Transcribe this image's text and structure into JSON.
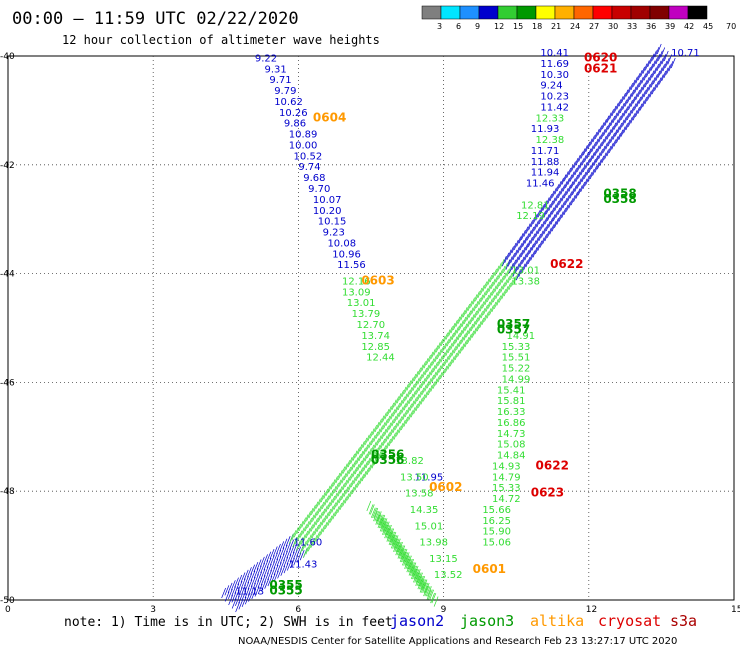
{
  "header": {
    "title": "00:00 – 11:59 UTC 02/22/2020",
    "subtitle": "12 hour collection of altimeter wave heights"
  },
  "colorbar": {
    "colors": [
      "#7f7f7f",
      "#00e5ff",
      "#1e90ff",
      "#0000cd",
      "#32cd32",
      "#009900",
      "#ffff00",
      "#ffb000",
      "#ff6600",
      "#ff0000",
      "#c80000",
      "#a00000",
      "#800000",
      "#c000c0",
      "#000000"
    ],
    "labels": [
      "3",
      "6",
      "9",
      "12",
      "15",
      "18",
      "21",
      "24",
      "27",
      "30",
      "33",
      "36",
      "39",
      "42",
      "45",
      "70",
      "(ft)"
    ]
  },
  "note": "note: 1) Time is in UTC; 2) SWH is in feet",
  "legend": [
    {
      "name": "jason2",
      "color": "#0000cc"
    },
    {
      "name": "jason3",
      "color": "#009900"
    },
    {
      "name": "altika",
      "color": "#ff9900"
    },
    {
      "name": "cryosat",
      "color": "#dd0000"
    },
    {
      "name": "s3a",
      "color": "#aa0000"
    }
  ],
  "footer": "NOAA/NESDIS Center for Satellite Applications and Research    Feb 23 13:27:17 UTC 2020",
  "chart_data": {
    "type": "scatter",
    "xlim": [
      0,
      15
    ],
    "ylim": [
      -50,
      -40
    ],
    "x_ticks": [
      "0",
      "3",
      "6",
      "9",
      "12",
      "15"
    ],
    "y_ticks": [
      "-40",
      "-42",
      "-44",
      "-46",
      "-48",
      "-50"
    ],
    "grid": true,
    "series": [
      {
        "name": "jason2",
        "color": "#0000cc",
        "points": [
          [
            5.1,
            -40.1,
            "9.22"
          ],
          [
            5.3,
            -40.3,
            "9.31"
          ],
          [
            5.4,
            -40.5,
            "9.71"
          ],
          [
            5.5,
            -40.7,
            "9.79"
          ],
          [
            5.5,
            -40.9,
            "10.62"
          ],
          [
            5.6,
            -41.1,
            "10.26"
          ],
          [
            5.7,
            -41.3,
            "9.86"
          ],
          [
            5.8,
            -41.5,
            "10.89"
          ],
          [
            5.8,
            -41.7,
            "10.00"
          ],
          [
            5.9,
            -41.9,
            "10.52"
          ],
          [
            6.0,
            -42.1,
            "9.74"
          ],
          [
            6.1,
            -42.3,
            "9.68"
          ],
          [
            6.2,
            -42.5,
            "9.70"
          ],
          [
            6.3,
            -42.7,
            "10.07"
          ],
          [
            6.3,
            -42.9,
            "10.20"
          ],
          [
            6.4,
            -43.1,
            "10.15"
          ],
          [
            6.5,
            -43.3,
            "9.23"
          ],
          [
            6.6,
            -43.5,
            "10.08"
          ],
          [
            6.7,
            -43.7,
            "10.96"
          ],
          [
            6.8,
            -43.9,
            "11.56"
          ],
          [
            11.0,
            -40.0,
            "10.41"
          ],
          [
            11.0,
            -40.2,
            "11.69"
          ],
          [
            11.0,
            -40.4,
            "10.30"
          ],
          [
            11.0,
            -40.6,
            "9.24"
          ],
          [
            11.0,
            -40.8,
            "10.23"
          ],
          [
            11.0,
            -41.0,
            "11.42"
          ],
          [
            10.8,
            -41.4,
            "11.93"
          ],
          [
            10.8,
            -41.8,
            "11.71"
          ],
          [
            10.8,
            -42.0,
            "11.88"
          ],
          [
            10.8,
            -42.2,
            "11.94"
          ],
          [
            10.7,
            -42.4,
            "11.46"
          ],
          [
            8.4,
            -47.8,
            "11.95"
          ],
          [
            5.9,
            -49.0,
            "11.60"
          ],
          [
            5.8,
            -49.4,
            "11.43"
          ],
          [
            13.7,
            -40.0,
            "10.71"
          ],
          [
            4.7,
            -49.9,
            "11.13"
          ]
        ]
      },
      {
        "name": "jason3",
        "color": "#33dd33",
        "points": [
          [
            6.9,
            -44.2,
            "12.16"
          ],
          [
            6.9,
            -44.4,
            "13.09"
          ],
          [
            7.0,
            -44.6,
            "13.01"
          ],
          [
            7.1,
            -44.8,
            "13.79"
          ],
          [
            7.2,
            -45.0,
            "12.70"
          ],
          [
            7.3,
            -45.2,
            "13.74"
          ],
          [
            7.3,
            -45.4,
            "12.85"
          ],
          [
            7.4,
            -45.6,
            "12.44"
          ],
          [
            10.9,
            -41.2,
            "12.33"
          ],
          [
            10.9,
            -41.6,
            "12.38"
          ],
          [
            10.6,
            -42.8,
            "12.81"
          ],
          [
            10.5,
            -43.0,
            "12.19"
          ],
          [
            10.4,
            -44.0,
            "13.01"
          ],
          [
            10.4,
            -44.2,
            "13.38"
          ],
          [
            10.3,
            -45.2,
            "14.91"
          ],
          [
            10.2,
            -45.4,
            "15.33"
          ],
          [
            10.2,
            -45.6,
            "15.51"
          ],
          [
            10.2,
            -45.8,
            "15.22"
          ],
          [
            10.2,
            -46.0,
            "14.99"
          ],
          [
            10.1,
            -46.2,
            "15.41"
          ],
          [
            10.1,
            -46.4,
            "15.81"
          ],
          [
            10.1,
            -46.6,
            "16.33"
          ],
          [
            10.1,
            -46.8,
            "16.86"
          ],
          [
            10.1,
            -47.0,
            "14.73"
          ],
          [
            10.1,
            -47.2,
            "15.08"
          ],
          [
            10.1,
            -47.4,
            "14.84"
          ],
          [
            10.0,
            -47.6,
            "14.93"
          ],
          [
            10.0,
            -47.8,
            "14.79"
          ],
          [
            10.0,
            -48.0,
            "15.33"
          ],
          [
            10.0,
            -48.2,
            "14.72"
          ],
          [
            9.8,
            -48.4,
            "15.66"
          ],
          [
            9.8,
            -48.6,
            "16.25"
          ],
          [
            9.8,
            -48.8,
            "15.90"
          ],
          [
            9.8,
            -49.0,
            "15.06"
          ],
          [
            8.0,
            -47.5,
            "13.82"
          ],
          [
            8.1,
            -47.8,
            "13.50"
          ],
          [
            8.2,
            -48.1,
            "13.58"
          ],
          [
            8.3,
            -48.4,
            "14.35"
          ],
          [
            8.4,
            -48.7,
            "15.01"
          ],
          [
            8.5,
            -49.0,
            "13.98"
          ],
          [
            8.7,
            -49.3,
            "13.15"
          ],
          [
            8.8,
            -49.6,
            "13.52"
          ]
        ]
      },
      {
        "name": "altika",
        "color": "#ff9900",
        "points": [
          [
            6.3,
            -41.2,
            "0604"
          ],
          [
            7.3,
            -44.2,
            "0603"
          ],
          [
            8.7,
            -48.0,
            "0602"
          ],
          [
            9.6,
            -49.5,
            "0601"
          ]
        ]
      },
      {
        "name": "cryosat",
        "color": "#dd0000",
        "points": [
          [
            11.9,
            -40.1,
            "0620"
          ],
          [
            11.9,
            -40.3,
            "0621"
          ],
          [
            11.2,
            -43.9,
            "0622"
          ],
          [
            10.9,
            -47.6,
            "0622"
          ],
          [
            10.8,
            -48.1,
            "0623"
          ]
        ]
      },
      {
        "name": "s3a",
        "color": "#009900",
        "points": [
          [
            5.4,
            -49.8,
            "0355"
          ],
          [
            5.4,
            -49.9,
            "0355"
          ],
          [
            7.5,
            -47.4,
            "0356"
          ],
          [
            7.5,
            -47.5,
            "0356"
          ],
          [
            10.1,
            -45.0,
            "0357"
          ],
          [
            10.1,
            -45.1,
            "0357"
          ],
          [
            12.3,
            -42.6,
            "0358"
          ],
          [
            12.3,
            -42.7,
            "0358"
          ]
        ]
      }
    ],
    "tracks": [
      {
        "color": "#0000cc",
        "from": [
          4.6,
          -50.0
        ],
        "to": [
          6.0,
          -49.0
        ]
      },
      {
        "color": "#33dd33",
        "from": [
          6.0,
          -49.0
        ],
        "to": [
          10.4,
          -43.9
        ]
      },
      {
        "color": "#0000cc",
        "from": [
          10.4,
          -43.9
        ],
        "to": [
          13.6,
          -40.0
        ]
      },
      {
        "color": "#33dd33",
        "from": [
          8.7,
          -49.9
        ],
        "to": [
          7.6,
          -48.4
        ]
      }
    ]
  }
}
